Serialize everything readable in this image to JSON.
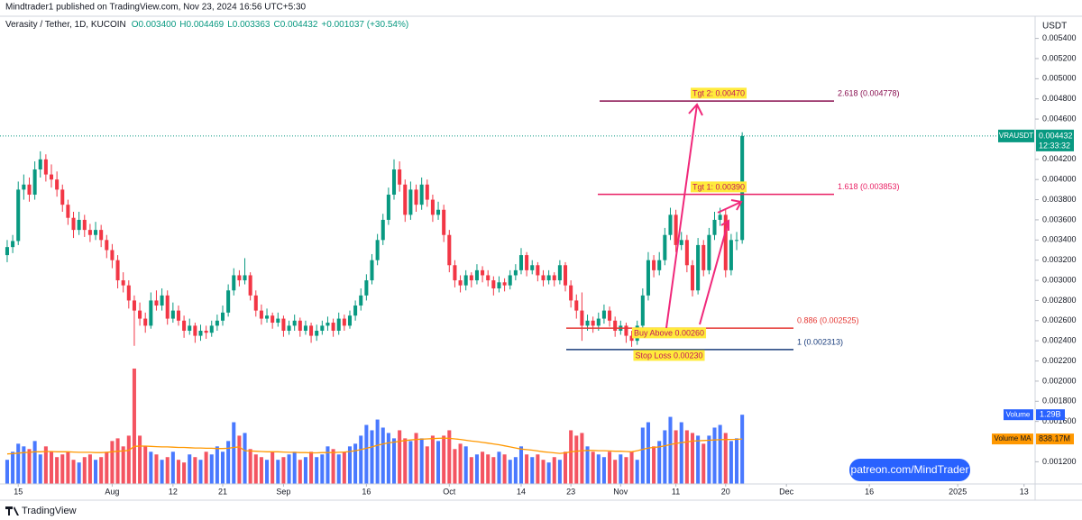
{
  "chart_data": {
    "type": "candlestick",
    "publisher": "Mindtrader1 published on TradingView.com, Nov 23, 2024 16:56 UTC+5:30",
    "legend": {
      "symbol": "Verasity / Tether, 1D, KUCOIN",
      "open": "O0.003400",
      "high": "H0.004469",
      "low": "L0.003363",
      "close": "C0.004432",
      "change": "+0.001037 (+30.54%)"
    },
    "currency": "USDT",
    "symbol_tag": "VRAUSDT",
    "price_label": "0.004432",
    "countdown": "12:33:32",
    "up_color": "#089981",
    "down_color": "#f23645",
    "volume_up_color": "#2962ff",
    "volume_down_color": "#f23645",
    "volume_ma_color": "#ff9800",
    "xlim": [
      -1.3,
      186
    ],
    "ylim": [
      0.00098,
      0.00562
    ],
    "volume_ylim": [
      0,
      2200
    ],
    "xticks": [
      {
        "value": 2,
        "label": "15"
      },
      {
        "value": 19,
        "label": "Aug"
      },
      {
        "value": 30,
        "label": "12"
      },
      {
        "value": 39,
        "label": "21"
      },
      {
        "value": 50,
        "label": "Sep"
      },
      {
        "value": 65,
        "label": "16"
      },
      {
        "value": 80,
        "label": "Oct"
      },
      {
        "value": 93,
        "label": "14"
      },
      {
        "value": 102,
        "label": "23"
      },
      {
        "value": 111,
        "label": "Nov"
      },
      {
        "value": 121,
        "label": "11"
      },
      {
        "value": 130,
        "label": "20"
      },
      {
        "value": 141,
        "label": "Dec"
      },
      {
        "value": 156,
        "label": "16"
      },
      {
        "value": 172,
        "label": "2025"
      },
      {
        "value": 184,
        "label": "13"
      }
    ],
    "yticks": [
      {
        "value": 0.0054,
        "label": "0.005400"
      },
      {
        "value": 0.0052,
        "label": "0.005200"
      },
      {
        "value": 0.005,
        "label": "0.005000"
      },
      {
        "value": 0.0048,
        "label": "0.004800"
      },
      {
        "value": 0.0046,
        "label": "0.004600"
      },
      {
        "value": 0.0042,
        "label": "0.004200"
      },
      {
        "value": 0.004,
        "label": "0.004000"
      },
      {
        "value": 0.0038,
        "label": "0.003800"
      },
      {
        "value": 0.0036,
        "label": "0.003600"
      },
      {
        "value": 0.0034,
        "label": "0.003400"
      },
      {
        "value": 0.0032,
        "label": "0.003200"
      },
      {
        "value": 0.003,
        "label": "0.003000"
      },
      {
        "value": 0.0028,
        "label": "0.002800"
      },
      {
        "value": 0.0026,
        "label": "0.002600"
      },
      {
        "value": 0.0024,
        "label": "0.002400"
      },
      {
        "value": 0.0022,
        "label": "0.002200"
      },
      {
        "value": 0.002,
        "label": "0.002000"
      },
      {
        "value": 0.0018,
        "label": "0.001800"
      },
      {
        "value": 0.0016,
        "label": "0.001600"
      },
      {
        "value": 0.0012,
        "label": "0.001200"
      }
    ],
    "candles": [
      [
        0.00325,
        0.0034,
        0.00318,
        0.00333
      ],
      [
        0.00333,
        0.00345,
        0.00327,
        0.00339
      ],
      [
        0.00339,
        0.00398,
        0.00335,
        0.0039
      ],
      [
        0.0039,
        0.00405,
        0.0038,
        0.00395
      ],
      [
        0.00395,
        0.00402,
        0.00378,
        0.00385
      ],
      [
        0.00385,
        0.00418,
        0.0038,
        0.0041
      ],
      [
        0.0041,
        0.00428,
        0.00402,
        0.0042
      ],
      [
        0.0042,
        0.00425,
        0.00398,
        0.00405
      ],
      [
        0.00405,
        0.00415,
        0.00392,
        0.004
      ],
      [
        0.004,
        0.00408,
        0.00383,
        0.0039
      ],
      [
        0.0039,
        0.00395,
        0.00368,
        0.00375
      ],
      [
        0.00375,
        0.0038,
        0.00355,
        0.00362
      ],
      [
        0.00362,
        0.00368,
        0.00342,
        0.0035
      ],
      [
        0.0035,
        0.00368,
        0.00345,
        0.0036
      ],
      [
        0.0036,
        0.00365,
        0.00343,
        0.0035
      ],
      [
        0.0035,
        0.00356,
        0.00338,
        0.00345
      ],
      [
        0.00345,
        0.00358,
        0.0034,
        0.0035
      ],
      [
        0.0035,
        0.00355,
        0.00333,
        0.0034
      ],
      [
        0.0034,
        0.00345,
        0.00322,
        0.0033
      ],
      [
        0.0033,
        0.00336,
        0.00312,
        0.0032
      ],
      [
        0.0032,
        0.00325,
        0.00292,
        0.003
      ],
      [
        0.003,
        0.00308,
        0.00288,
        0.00295
      ],
      [
        0.00295,
        0.003,
        0.00272,
        0.0028
      ],
      [
        0.0028,
        0.00285,
        0.00235,
        0.0027
      ],
      [
        0.0027,
        0.00278,
        0.00255,
        0.00262
      ],
      [
        0.00262,
        0.00268,
        0.00248,
        0.00255
      ],
      [
        0.00255,
        0.00288,
        0.00252,
        0.0028
      ],
      [
        0.0028,
        0.0029,
        0.0027,
        0.00275
      ],
      [
        0.00275,
        0.00292,
        0.0027,
        0.00285
      ],
      [
        0.00285,
        0.0029,
        0.00256,
        0.00262
      ],
      [
        0.00262,
        0.00278,
        0.00258,
        0.0027
      ],
      [
        0.0027,
        0.00275,
        0.00255,
        0.0026
      ],
      [
        0.0026,
        0.00265,
        0.00243,
        0.0025
      ],
      [
        0.0025,
        0.00262,
        0.00246,
        0.00255
      ],
      [
        0.00255,
        0.00258,
        0.00238,
        0.00245
      ],
      [
        0.00245,
        0.00256,
        0.0024,
        0.0025
      ],
      [
        0.0025,
        0.00255,
        0.00242,
        0.00248
      ],
      [
        0.00248,
        0.0026,
        0.00244,
        0.00255
      ],
      [
        0.00255,
        0.00266,
        0.0025,
        0.0026
      ],
      [
        0.0026,
        0.00275,
        0.00255,
        0.00268
      ],
      [
        0.00268,
        0.00296,
        0.00264,
        0.0029
      ],
      [
        0.0029,
        0.00312,
        0.00285,
        0.00305
      ],
      [
        0.00305,
        0.0031,
        0.00294,
        0.003
      ],
      [
        0.003,
        0.00322,
        0.00296,
        0.00305
      ],
      [
        0.00305,
        0.00308,
        0.0028,
        0.00285
      ],
      [
        0.00285,
        0.0029,
        0.00264,
        0.0027
      ],
      [
        0.0027,
        0.00276,
        0.00256,
        0.00262
      ],
      [
        0.00262,
        0.00272,
        0.00258,
        0.00265
      ],
      [
        0.00265,
        0.00268,
        0.00252,
        0.00258
      ],
      [
        0.00258,
        0.00268,
        0.00254,
        0.00262
      ],
      [
        0.00262,
        0.00265,
        0.00244,
        0.0025
      ],
      [
        0.0025,
        0.0026,
        0.00246,
        0.00255
      ],
      [
        0.00255,
        0.00266,
        0.0025,
        0.0026
      ],
      [
        0.0026,
        0.00263,
        0.00244,
        0.0025
      ],
      [
        0.0025,
        0.0026,
        0.00246,
        0.00255
      ],
      [
        0.00255,
        0.00258,
        0.00238,
        0.00245
      ],
      [
        0.00245,
        0.00256,
        0.0024,
        0.0025
      ],
      [
        0.0025,
        0.0026,
        0.00246,
        0.00255
      ],
      [
        0.00255,
        0.00264,
        0.0025,
        0.00258
      ],
      [
        0.00258,
        0.00262,
        0.00244,
        0.0025
      ],
      [
        0.0025,
        0.00268,
        0.00246,
        0.00262
      ],
      [
        0.00262,
        0.00266,
        0.0025,
        0.00255
      ],
      [
        0.00255,
        0.0027,
        0.00252,
        0.00265
      ],
      [
        0.00265,
        0.0028,
        0.0026,
        0.00275
      ],
      [
        0.00275,
        0.00292,
        0.0027,
        0.00285
      ],
      [
        0.00285,
        0.00306,
        0.0028,
        0.003
      ],
      [
        0.003,
        0.00326,
        0.00296,
        0.0032
      ],
      [
        0.0032,
        0.00346,
        0.00315,
        0.0034
      ],
      [
        0.0034,
        0.00366,
        0.00335,
        0.0036
      ],
      [
        0.0036,
        0.00392,
        0.00355,
        0.00385
      ],
      [
        0.00385,
        0.0042,
        0.0038,
        0.0041
      ],
      [
        0.0041,
        0.00418,
        0.00388,
        0.00395
      ],
      [
        0.00395,
        0.004,
        0.00358,
        0.00365
      ],
      [
        0.00365,
        0.00398,
        0.0036,
        0.0039
      ],
      [
        0.0039,
        0.00395,
        0.00368,
        0.00375
      ],
      [
        0.00375,
        0.00402,
        0.0037,
        0.00395
      ],
      [
        0.00395,
        0.004,
        0.00373,
        0.0038
      ],
      [
        0.0038,
        0.00385,
        0.00358,
        0.00365
      ],
      [
        0.00365,
        0.00378,
        0.0036,
        0.0037
      ],
      [
        0.0037,
        0.00375,
        0.00338,
        0.00345
      ],
      [
        0.00345,
        0.0035,
        0.00308,
        0.00315
      ],
      [
        0.00315,
        0.0032,
        0.00293,
        0.003
      ],
      [
        0.003,
        0.00305,
        0.00288,
        0.00295
      ],
      [
        0.00295,
        0.0031,
        0.0029,
        0.00305
      ],
      [
        0.00305,
        0.00308,
        0.00293,
        0.003
      ],
      [
        0.003,
        0.00316,
        0.00296,
        0.0031
      ],
      [
        0.0031,
        0.00314,
        0.00298,
        0.00305
      ],
      [
        0.00305,
        0.0031,
        0.00294,
        0.003
      ],
      [
        0.003,
        0.00304,
        0.00285,
        0.00292
      ],
      [
        0.00292,
        0.00304,
        0.00288,
        0.00298
      ],
      [
        0.00298,
        0.00302,
        0.00289,
        0.00295
      ],
      [
        0.00295,
        0.0031,
        0.00291,
        0.00305
      ],
      [
        0.00305,
        0.00316,
        0.003,
        0.0031
      ],
      [
        0.0031,
        0.00332,
        0.00306,
        0.00325
      ],
      [
        0.00325,
        0.00328,
        0.00304,
        0.0031
      ],
      [
        0.0031,
        0.0032,
        0.00306,
        0.00315
      ],
      [
        0.00315,
        0.00318,
        0.00299,
        0.00305
      ],
      [
        0.00305,
        0.0031,
        0.00294,
        0.003
      ],
      [
        0.003,
        0.0031,
        0.00296,
        0.00305
      ],
      [
        0.00305,
        0.00308,
        0.00294,
        0.003
      ],
      [
        0.003,
        0.0032,
        0.00296,
        0.00315
      ],
      [
        0.00315,
        0.00318,
        0.00289,
        0.00295
      ],
      [
        0.00295,
        0.003,
        0.00273,
        0.0028
      ],
      [
        0.0028,
        0.00286,
        0.00262,
        0.0027
      ],
      [
        0.0027,
        0.00288,
        0.0024,
        0.00255
      ],
      [
        0.00255,
        0.00266,
        0.0025,
        0.0026
      ],
      [
        0.0026,
        0.00264,
        0.00248,
        0.00255
      ],
      [
        0.00255,
        0.00268,
        0.0025,
        0.00262
      ],
      [
        0.00262,
        0.00276,
        0.00257,
        0.0027
      ],
      [
        0.0027,
        0.00274,
        0.00254,
        0.0026
      ],
      [
        0.0026,
        0.00264,
        0.00244,
        0.0025
      ],
      [
        0.0025,
        0.0026,
        0.00246,
        0.00255
      ],
      [
        0.00255,
        0.00258,
        0.00238,
        0.00245
      ],
      [
        0.00245,
        0.0025,
        0.00234,
        0.0024
      ],
      [
        0.0024,
        0.0026,
        0.00236,
        0.00255
      ],
      [
        0.00255,
        0.00292,
        0.0025,
        0.00285
      ],
      [
        0.00285,
        0.00328,
        0.0028,
        0.0032
      ],
      [
        0.0032,
        0.00325,
        0.00303,
        0.0031
      ],
      [
        0.0031,
        0.00328,
        0.00305,
        0.0032
      ],
      [
        0.0032,
        0.00352,
        0.00315,
        0.00345
      ],
      [
        0.00345,
        0.00372,
        0.0034,
        0.00365
      ],
      [
        0.00365,
        0.0037,
        0.00328,
        0.00335
      ],
      [
        0.00335,
        0.00348,
        0.0033,
        0.0034
      ],
      [
        0.0034,
        0.00345,
        0.00308,
        0.00315
      ],
      [
        0.00315,
        0.0032,
        0.00284,
        0.0029
      ],
      [
        0.0029,
        0.00342,
        0.00286,
        0.00335
      ],
      [
        0.00335,
        0.0034,
        0.00304,
        0.0031
      ],
      [
        0.0031,
        0.00352,
        0.00306,
        0.00345
      ],
      [
        0.00345,
        0.00368,
        0.0034,
        0.0036
      ],
      [
        0.0036,
        0.00372,
        0.00354,
        0.00365
      ],
      [
        0.00365,
        0.0037,
        0.00303,
        0.0031
      ],
      [
        0.0031,
        0.00346,
        0.00305,
        0.0034
      ],
      [
        0.0034,
        0.00348,
        0.0033,
        0.0034
      ],
      [
        0.0034,
        0.004469,
        0.003363,
        0.004432
      ]
    ],
    "volume": {
      "name": "Volume",
      "value_label": "1.29B",
      "values": [
        450,
        600,
        750,
        700,
        650,
        800,
        550,
        700,
        600,
        500,
        550,
        600,
        450,
        400,
        500,
        550,
        450,
        500,
        600,
        800,
        850,
        700,
        900,
        2150,
        900,
        700,
        600,
        550,
        450,
        500,
        600,
        450,
        400,
        550,
        500,
        450,
        600,
        550,
        700,
        600,
        800,
        1150,
        900,
        950,
        650,
        550,
        500,
        450,
        600,
        450,
        500,
        550,
        600,
        450,
        500,
        600,
        500,
        550,
        700,
        650,
        550,
        600,
        700,
        750,
        900,
        1100,
        1000,
        1200,
        1050,
        950,
        850,
        1000,
        850,
        800,
        950,
        850,
        700,
        900,
        800,
        900,
        1000,
        650,
        750,
        700,
        500,
        550,
        600,
        550,
        500,
        600,
        550,
        450,
        500,
        700,
        550,
        500,
        550,
        450,
        400,
        500,
        450,
        600,
        1000,
        900,
        950,
        700,
        600,
        550,
        500,
        600,
        450,
        550,
        500,
        600,
        450,
        1050,
        1150,
        700,
        800,
        1000,
        1250,
        1000,
        1150,
        1000,
        950,
        900,
        750,
        900,
        1050,
        1100,
        950,
        800,
        850,
        1290
      ]
    },
    "volume_ma": {
      "name": "Volume MA",
      "value_label": "838.17M",
      "values": [
        560,
        565,
        575,
        585,
        590,
        600,
        600,
        605,
        605,
        600,
        600,
        600,
        595,
        590,
        590,
        590,
        585,
        585,
        590,
        600,
        610,
        615,
        625,
        700,
        705,
        705,
        700,
        695,
        690,
        690,
        685,
        680,
        680,
        675,
        670,
        670,
        665,
        665,
        660,
        660,
        665,
        680,
        690,
        620,
        615,
        610,
        605,
        600,
        600,
        600,
        595,
        590,
        590,
        585,
        585,
        580,
        580,
        585,
        585,
        585,
        590,
        595,
        605,
        620,
        640,
        665,
        690,
        720,
        745,
        765,
        780,
        795,
        810,
        820,
        830,
        835,
        840,
        845,
        850,
        855,
        850,
        840,
        830,
        815,
        800,
        790,
        775,
        760,
        745,
        730,
        710,
        690,
        670,
        650,
        640,
        630,
        615,
        600,
        590,
        580,
        570,
        580,
        600,
        610,
        620,
        625,
        625,
        620,
        620,
        615,
        610,
        610,
        605,
        600,
        620,
        645,
        670,
        680,
        690,
        710,
        735,
        755,
        770,
        785,
        800,
        805,
        810,
        815,
        820,
        825,
        828,
        830,
        832,
        838.17
      ]
    },
    "levels": [
      {
        "label": "2.618 (0.004778)",
        "value": 0.004778,
        "color": "#880e4f"
      },
      {
        "label": "1.618 (0.003853)",
        "value": 0.003853,
        "color": "#e91e63"
      },
      {
        "label": "0.886 (0.002525)",
        "value": 0.002525,
        "color": "#e53935"
      },
      {
        "label": "1 (0.002313)",
        "value": 0.002313,
        "color": "#1a3d7c"
      }
    ],
    "annotations": [
      "Tgt 2: 0.00470",
      "Tgt 1: 0.00390",
      "Buy Above 0.00260",
      "Stop Loss 0.00230"
    ],
    "watermark": "patreon.com/MindTrader",
    "brand": "TradingView"
  }
}
